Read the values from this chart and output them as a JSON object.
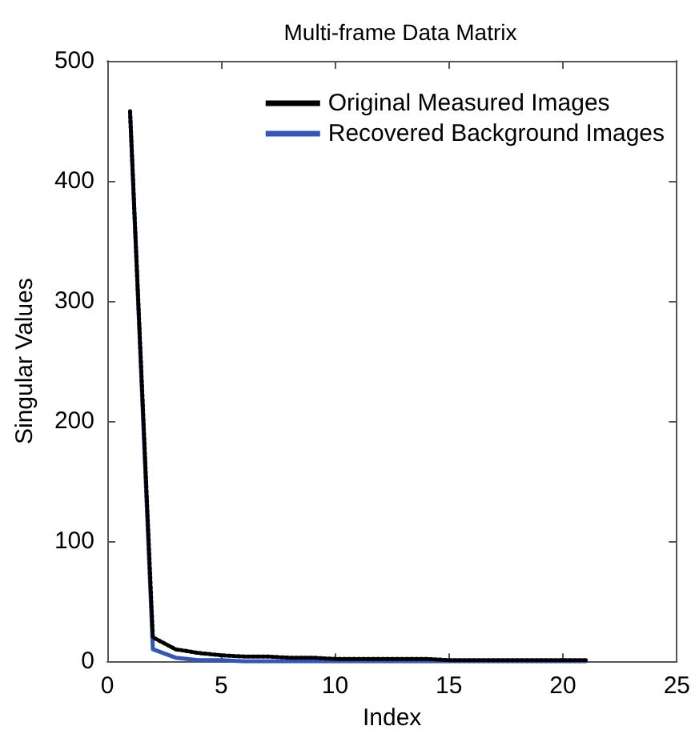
{
  "chart_data": {
    "type": "line",
    "title": "Multi-frame Data Matrix",
    "xlabel": "Index",
    "ylabel": "Singular Values",
    "x": [
      1,
      2,
      3,
      4,
      5,
      6,
      7,
      8,
      9,
      10,
      11,
      12,
      13,
      14,
      15,
      16,
      17,
      18,
      19,
      20,
      21
    ],
    "series": [
      {
        "name": "Original Measured Images",
        "color": "#000000",
        "line_style": "dotted",
        "values": [
          458,
          20,
          10,
          7,
          5,
          4,
          4,
          3,
          3,
          2,
          2,
          2,
          2,
          2,
          1,
          1,
          1,
          1,
          1,
          1,
          1
        ]
      },
      {
        "name": "Recovered Background Images",
        "color": "#3357b8",
        "line_style": "solid",
        "values": [
          458,
          10,
          3,
          1,
          1,
          0,
          0,
          0,
          0,
          0,
          0,
          0,
          0,
          0,
          0,
          0,
          0,
          0,
          0,
          0,
          0
        ]
      }
    ],
    "xlim": [
      0,
      25
    ],
    "xticks": [
      0,
      5,
      10,
      15,
      20,
      25
    ],
    "ylim": [
      0,
      500
    ],
    "yticks": [
      0,
      100,
      200,
      300,
      400,
      500
    ],
    "grid": false,
    "legend": "top right",
    "marker": "none"
  }
}
